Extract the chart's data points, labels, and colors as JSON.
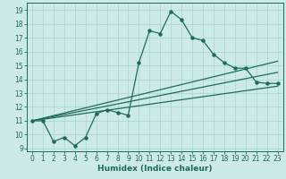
{
  "xlabel": "Humidex (Indice chaleur)",
  "xlim": [
    -0.5,
    23.5
  ],
  "ylim": [
    8.8,
    19.5
  ],
  "yticks": [
    9,
    10,
    11,
    12,
    13,
    14,
    15,
    16,
    17,
    18,
    19
  ],
  "xticks": [
    0,
    1,
    2,
    3,
    4,
    5,
    6,
    7,
    8,
    9,
    10,
    11,
    12,
    13,
    14,
    15,
    16,
    17,
    18,
    19,
    20,
    21,
    22,
    23
  ],
  "bg_color": "#cceae7",
  "grid_color": "#aad4d0",
  "line_color": "#1e6b5e",
  "main_x": [
    0,
    1,
    2,
    3,
    4,
    5,
    6,
    7,
    8,
    9,
    10,
    11,
    12,
    13,
    14,
    15,
    16,
    17,
    18,
    19,
    20,
    21,
    22,
    23
  ],
  "main_y": [
    11.0,
    11.0,
    9.5,
    9.8,
    9.2,
    9.8,
    11.5,
    11.8,
    11.6,
    11.4,
    15.2,
    17.5,
    17.3,
    18.9,
    18.3,
    17.0,
    16.8,
    15.8,
    15.2,
    14.8,
    14.8,
    13.8,
    13.7,
    13.7
  ],
  "line1_x": [
    0,
    23
  ],
  "line1_y": [
    11.0,
    13.5
  ],
  "line2_x": [
    0,
    23
  ],
  "line2_y": [
    11.0,
    14.5
  ],
  "line3_x": [
    0,
    23
  ],
  "line3_y": [
    11.0,
    15.3
  ],
  "lw": 0.9,
  "ms": 2.2,
  "tick_fontsize": 5.5,
  "xlabel_fontsize": 6.5
}
